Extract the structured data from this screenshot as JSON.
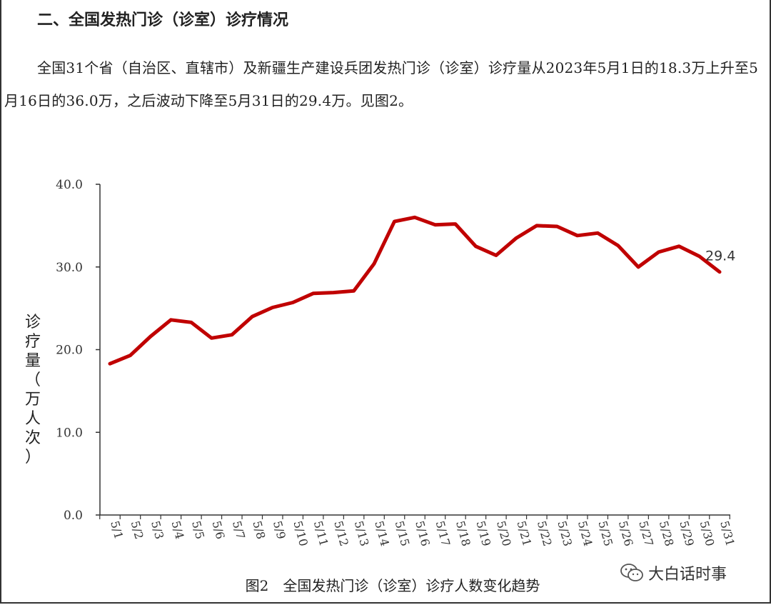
{
  "section_heading": "二、全国发热门诊（诊室）诊疗情况",
  "paragraph": "全国31个省（自治区、直辖市）及新疆生产建设兵团发热门诊（诊室）诊疗量从2023年5月1日的18.3万上升至5月16日的36.0万，之后波动下降至5月31日的29.4万。见图2。",
  "caption": "图2　全国发热门诊（诊室）诊疗人数变化趋势",
  "watermark": "大白话时事",
  "chart_data": {
    "type": "line",
    "title": "",
    "xlabel": "",
    "ylabel": "诊疗量（万人次）",
    "ylabel_chars": [
      "诊",
      "疗",
      "量",
      "（",
      "万",
      "人",
      "次",
      "）"
    ],
    "ylim": [
      0,
      40
    ],
    "yticks": [
      "0.0",
      "10.0",
      "20.0",
      "30.0",
      "40.0"
    ],
    "grid": false,
    "line_color": "#c00000",
    "categories": [
      "5/1",
      "5/2",
      "5/3",
      "5/4",
      "5/5",
      "5/6",
      "5/7",
      "5/8",
      "5/9",
      "5/10",
      "5/11",
      "5/12",
      "5/13",
      "5/14",
      "5/15",
      "5/16",
      "5/17",
      "5/18",
      "5/19",
      "5/20",
      "5/21",
      "5/22",
      "5/23",
      "5/24",
      "5/25",
      "5/26",
      "5/27",
      "5/28",
      "5/29",
      "5/30",
      "5/31"
    ],
    "series": [
      {
        "values": [
          18.3,
          19.3,
          21.6,
          23.6,
          23.3,
          21.4,
          21.8,
          24.0,
          25.1,
          25.7,
          26.8,
          26.9,
          27.1,
          30.4,
          35.5,
          36.0,
          35.1,
          35.2,
          32.5,
          31.4,
          33.5,
          35.0,
          34.9,
          33.8,
          34.1,
          32.6,
          30.0,
          31.8,
          32.5,
          31.3,
          29.4
        ]
      }
    ],
    "data_labels": [
      {
        "index": 30,
        "text": "29.4"
      }
    ]
  }
}
